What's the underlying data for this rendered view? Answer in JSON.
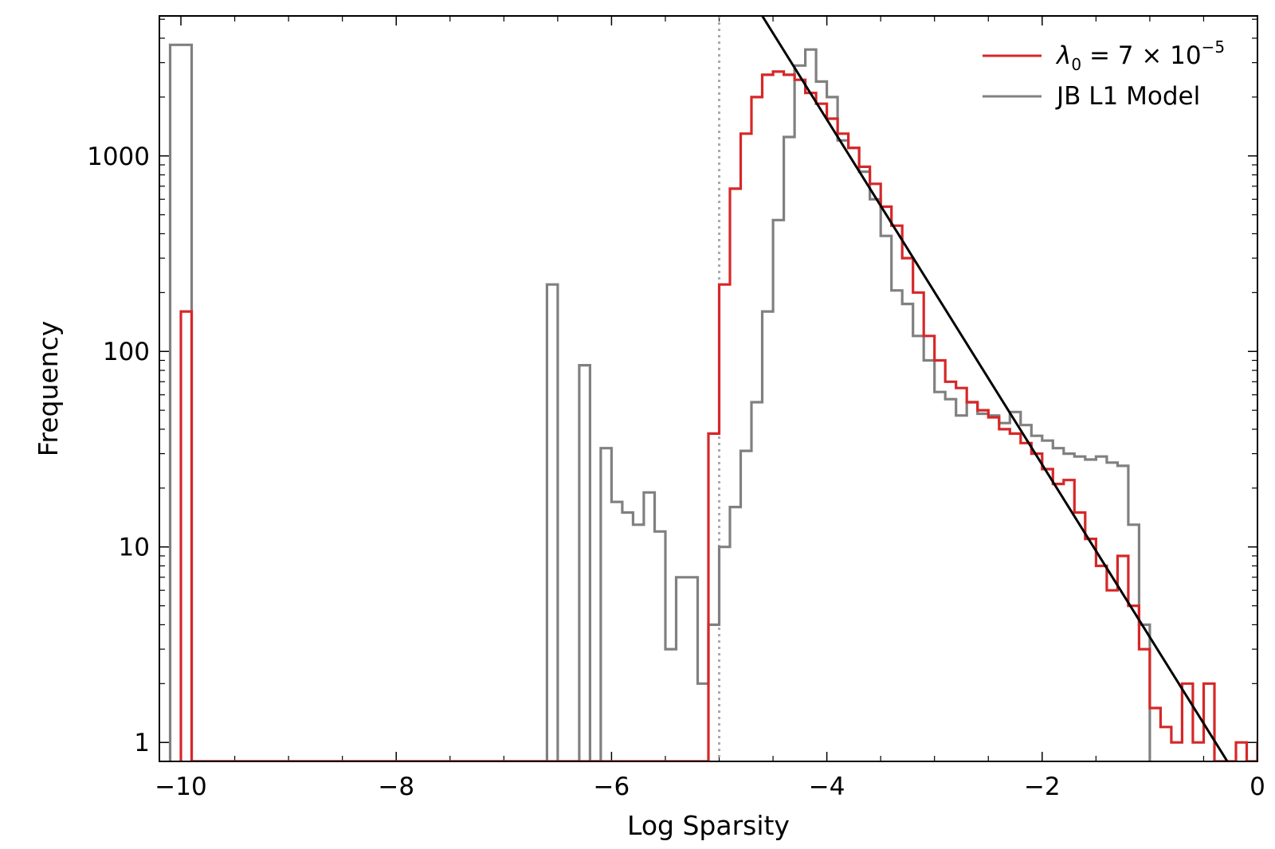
{
  "chart_data": {
    "type": "line",
    "xlabel": "Log Sparsity",
    "ylabel": "Frequency",
    "xlim": [
      -10.2,
      0.0
    ],
    "ylim": [
      0.8,
      5200
    ],
    "y_scale": "log",
    "grid": false,
    "legend_position": "top-right",
    "x_ticks": [
      {
        "value": -10,
        "label": "−10"
      },
      {
        "value": -8,
        "label": "−8"
      },
      {
        "value": -6,
        "label": "−6"
      },
      {
        "value": -4,
        "label": "−4"
      },
      {
        "value": -2,
        "label": "−2"
      },
      {
        "value": 0,
        "label": "0"
      }
    ],
    "y_ticks": [
      {
        "value": 1,
        "label": "1"
      },
      {
        "value": 10,
        "label": "10"
      },
      {
        "value": 100,
        "label": "100"
      },
      {
        "value": 1000,
        "label": "1000"
      }
    ],
    "threshold_line": {
      "x": -5.0,
      "style": "dotted",
      "color": "#aaaaaa"
    },
    "fit_line": {
      "color": "#000000",
      "x1": -4.6,
      "y1": 5200,
      "x2": -0.28,
      "y2": 0.8
    },
    "series": [
      {
        "name_prefix": "λ",
        "name_subscript": "0",
        "name_mid": " = 7 × 10",
        "name_superscript": "−5",
        "color": "#d62728",
        "type": "step-histogram",
        "steps": [
          [
            -10.0,
            160
          ],
          [
            -9.9,
            0.8
          ],
          [
            -5.2,
            0.8
          ],
          [
            -5.1,
            38
          ],
          [
            -5.0,
            220
          ],
          [
            -4.9,
            680
          ],
          [
            -4.8,
            1300
          ],
          [
            -4.7,
            2000
          ],
          [
            -4.6,
            2600
          ],
          [
            -4.5,
            2700
          ],
          [
            -4.4,
            2600
          ],
          [
            -4.3,
            2450
          ],
          [
            -4.2,
            2100
          ],
          [
            -4.1,
            1850
          ],
          [
            -4.0,
            1550
          ],
          [
            -3.9,
            1300
          ],
          [
            -3.8,
            1100
          ],
          [
            -3.7,
            880
          ],
          [
            -3.6,
            720
          ],
          [
            -3.5,
            550
          ],
          [
            -3.4,
            440
          ],
          [
            -3.3,
            300
          ],
          [
            -3.2,
            200
          ],
          [
            -3.1,
            120
          ],
          [
            -3.0,
            90
          ],
          [
            -2.9,
            70
          ],
          [
            -2.8,
            65
          ],
          [
            -2.7,
            55
          ],
          [
            -2.6,
            50
          ],
          [
            -2.5,
            46
          ],
          [
            -2.4,
            40
          ],
          [
            -2.3,
            38
          ],
          [
            -2.2,
            34
          ],
          [
            -2.1,
            30
          ],
          [
            -2.0,
            25
          ],
          [
            -1.9,
            21
          ],
          [
            -1.8,
            22
          ],
          [
            -1.7,
            15
          ],
          [
            -1.6,
            11
          ],
          [
            -1.5,
            8
          ],
          [
            -1.4,
            6
          ],
          [
            -1.3,
            9
          ],
          [
            -1.2,
            5
          ],
          [
            -1.1,
            3
          ],
          [
            -1.0,
            1.5
          ],
          [
            -0.9,
            1.2
          ],
          [
            -0.8,
            1
          ],
          [
            -0.7,
            2
          ],
          [
            -0.6,
            1
          ],
          [
            -0.5,
            2
          ],
          [
            -0.4,
            0.8
          ],
          [
            -0.3,
            0.8
          ],
          [
            -0.2,
            1
          ],
          [
            -0.1,
            0.8
          ],
          [
            0.0,
            1
          ]
        ]
      },
      {
        "name": "JB L1 Model",
        "color": "#808080",
        "type": "step-histogram",
        "steps": [
          [
            -10.1,
            3700
          ],
          [
            -9.9,
            0.8
          ],
          [
            -6.6,
            220
          ],
          [
            -6.5,
            0.8
          ],
          [
            -6.3,
            85
          ],
          [
            -6.2,
            0.8
          ],
          [
            -6.1,
            32
          ],
          [
            -6.0,
            17
          ],
          [
            -5.9,
            15
          ],
          [
            -5.8,
            13
          ],
          [
            -5.7,
            19
          ],
          [
            -5.6,
            12
          ],
          [
            -5.5,
            3
          ],
          [
            -5.4,
            7
          ],
          [
            -5.2,
            2
          ],
          [
            -5.1,
            4
          ],
          [
            -5.0,
            10
          ],
          [
            -4.9,
            16
          ],
          [
            -4.8,
            31
          ],
          [
            -4.7,
            55
          ],
          [
            -4.6,
            160
          ],
          [
            -4.5,
            470
          ],
          [
            -4.4,
            1250
          ],
          [
            -4.3,
            2900
          ],
          [
            -4.2,
            3500
          ],
          [
            -4.1,
            2400
          ],
          [
            -4.0,
            2000
          ],
          [
            -3.9,
            1200
          ],
          [
            -3.8,
            1100
          ],
          [
            -3.7,
            830
          ],
          [
            -3.6,
            600
          ],
          [
            -3.5,
            390
          ],
          [
            -3.4,
            205
          ],
          [
            -3.3,
            175
          ],
          [
            -3.2,
            120
          ],
          [
            -3.1,
            90
          ],
          [
            -3.0,
            62
          ],
          [
            -2.9,
            57
          ],
          [
            -2.8,
            47
          ],
          [
            -2.7,
            55
          ],
          [
            -2.6,
            48
          ],
          [
            -2.5,
            47
          ],
          [
            -2.4,
            43
          ],
          [
            -2.3,
            49
          ],
          [
            -2.2,
            42
          ],
          [
            -2.1,
            37
          ],
          [
            -2.0,
            35
          ],
          [
            -1.9,
            32
          ],
          [
            -1.8,
            30
          ],
          [
            -1.7,
            29
          ],
          [
            -1.6,
            28
          ],
          [
            -1.5,
            29
          ],
          [
            -1.4,
            27
          ],
          [
            -1.3,
            26
          ],
          [
            -1.2,
            13
          ],
          [
            -1.1,
            4
          ],
          [
            -1.0,
            0.8
          ]
        ]
      }
    ]
  }
}
